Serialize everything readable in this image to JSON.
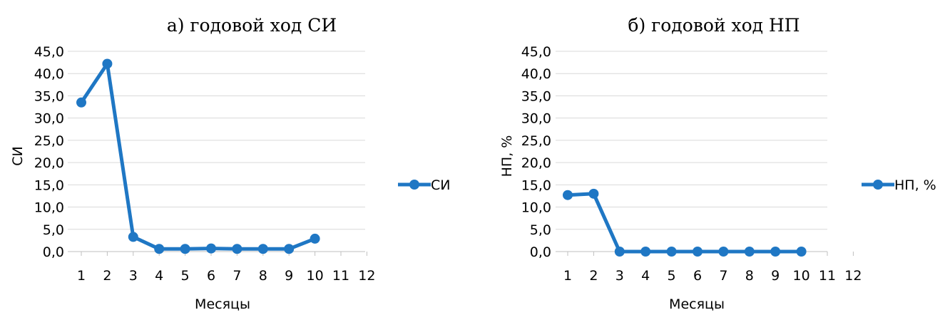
{
  "chart_data": [
    {
      "type": "line",
      "title": "а) годовой ход СИ",
      "xlabel": "Месяцы",
      "ylabel": "СИ",
      "x": [
        1,
        2,
        3,
        4,
        5,
        6,
        7,
        8,
        9,
        10,
        11,
        12
      ],
      "x_ticks": [
        "1",
        "2",
        "3",
        "4",
        "5",
        "6",
        "7",
        "8",
        "9",
        "10",
        "11",
        "12"
      ],
      "y_ticks": [
        "0,0",
        "5,0",
        "10,0",
        "15,0",
        "20,0",
        "25,0",
        "30,0",
        "35,0",
        "40,0",
        "45,0"
      ],
      "ylim": [
        0,
        45
      ],
      "grid": true,
      "legend_position": "right",
      "series": [
        {
          "name": "СИ",
          "color": "#1f77c4",
          "values": [
            33.5,
            42.2,
            3.3,
            0.6,
            0.6,
            0.7,
            0.6,
            0.6,
            0.6,
            2.9,
            null,
            null
          ]
        }
      ]
    },
    {
      "type": "line",
      "title": "б) годовой ход НП",
      "xlabel": "Месяцы",
      "ylabel": "НП, %",
      "x": [
        1,
        2,
        3,
        4,
        5,
        6,
        7,
        8,
        9,
        10,
        11,
        12
      ],
      "x_ticks": [
        "1",
        "2",
        "3",
        "4",
        "5",
        "6",
        "7",
        "8",
        "9",
        "10",
        "11",
        "12"
      ],
      "y_ticks": [
        "0,0",
        "5,0",
        "10,0",
        "15,0",
        "20,0",
        "25,0",
        "30,0",
        "35,0",
        "40,0",
        "45,0"
      ],
      "ylim": [
        0,
        45
      ],
      "grid": true,
      "legend_position": "right",
      "series": [
        {
          "name": "НП, %",
          "color": "#1f77c4",
          "values": [
            12.7,
            13.0,
            0.0,
            0.0,
            0.0,
            0.0,
            0.0,
            0.0,
            0.0,
            0.0,
            null,
            null
          ]
        }
      ]
    }
  ]
}
